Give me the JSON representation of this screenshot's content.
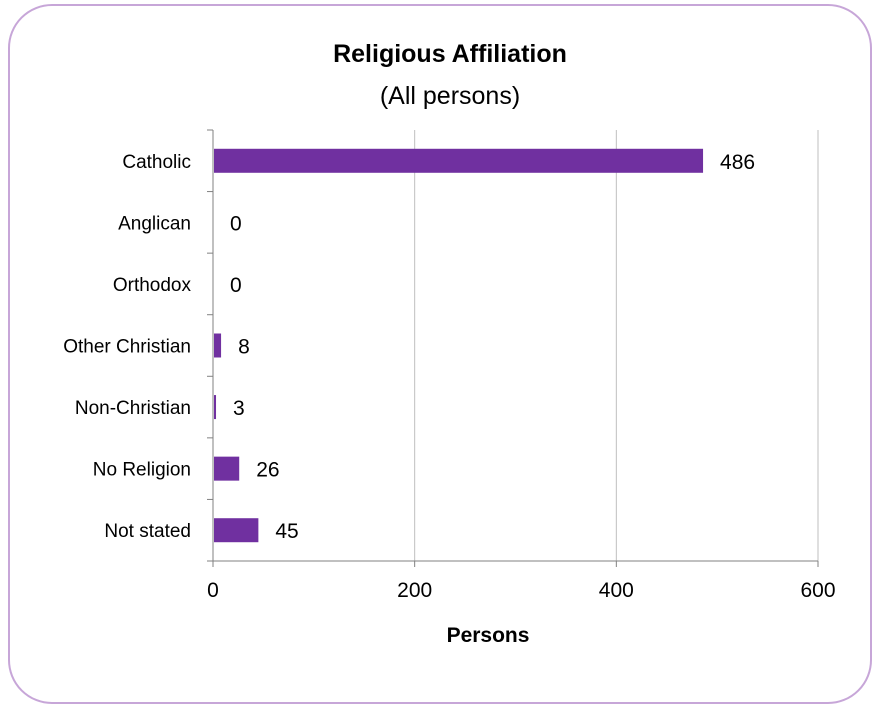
{
  "chart_data": {
    "type": "bar",
    "orientation": "horizontal",
    "title": "Religious Affiliation",
    "subtitle": "(All persons)",
    "xlabel": "Persons",
    "categories": [
      "Catholic",
      "Anglican",
      "Orthodox",
      "Other Christian",
      "Non-Christian",
      "No Religion",
      "Not stated"
    ],
    "values": [
      486,
      0,
      0,
      8,
      3,
      26,
      45
    ],
    "value_labels": [
      "486",
      "0",
      "0",
      "8",
      "3",
      "26",
      "45"
    ],
    "xlim": [
      0,
      600
    ],
    "xticks": [
      0,
      200,
      400,
      600
    ],
    "xtick_labels": [
      "0",
      "200",
      "400",
      "600"
    ],
    "grid": "vertical",
    "bar_color": "#7030a0",
    "frame_color": "#c7a6d8"
  }
}
